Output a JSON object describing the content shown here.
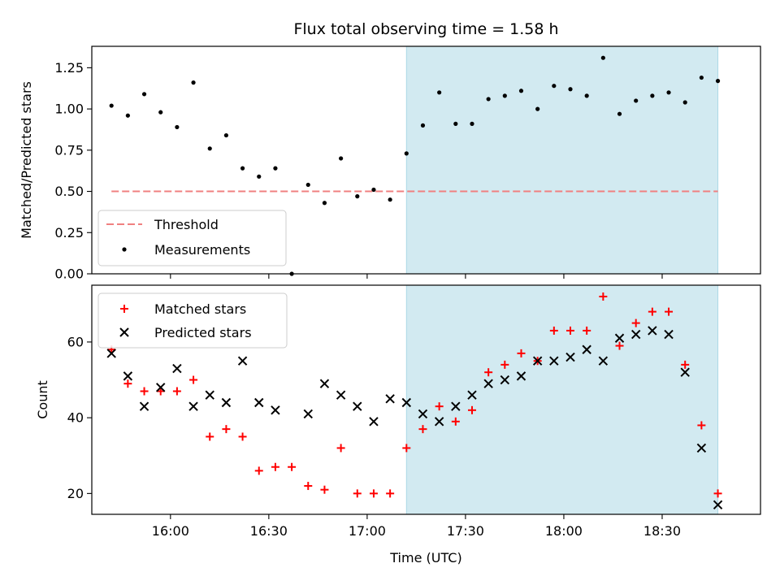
{
  "chart_data": [
    {
      "type": "scatter",
      "title": "Flux total observing time = 1.58 h",
      "xlabel": "",
      "ylabel": "Matched/Predicted stars",
      "ylim": [
        0,
        1.38
      ],
      "yticks": [
        0.0,
        0.25,
        0.5,
        0.75,
        1.0,
        1.25
      ],
      "ytick_labels": [
        "0.00",
        "0.25",
        "0.50",
        "0.75",
        "1.00",
        "1.25"
      ],
      "xlim": [
        "15:36",
        "19:00"
      ],
      "xticks": [
        "16:00",
        "16:30",
        "17:00",
        "17:30",
        "18:00",
        "18:30"
      ],
      "shaded_region": {
        "from": "17:12",
        "to": "18:47",
        "color": "#add8e6"
      },
      "legend_position": "lower-left",
      "threshold": {
        "name": "Threshold",
        "value": 0.5,
        "from": "15:42",
        "to": "18:47",
        "color": "#f08080"
      },
      "series": [
        {
          "name": "Measurements",
          "marker": "dot",
          "color": "#000000",
          "points": [
            [
              "15:42",
              1.02
            ],
            [
              "15:47",
              0.96
            ],
            [
              "15:52",
              1.09
            ],
            [
              "15:57",
              0.98
            ],
            [
              "16:02",
              0.89
            ],
            [
              "16:07",
              1.16
            ],
            [
              "16:12",
              0.76
            ],
            [
              "16:17",
              0.84
            ],
            [
              "16:22",
              0.64
            ],
            [
              "16:27",
              0.59
            ],
            [
              "16:32",
              0.64
            ],
            [
              "16:37",
              0.0
            ],
            [
              "16:42",
              0.54
            ],
            [
              "16:47",
              0.43
            ],
            [
              "16:52",
              0.7
            ],
            [
              "16:57",
              0.47
            ],
            [
              "17:02",
              0.51
            ],
            [
              "17:07",
              0.45
            ],
            [
              "17:12",
              0.73
            ],
            [
              "17:17",
              0.9
            ],
            [
              "17:22",
              1.1
            ],
            [
              "17:27",
              0.91
            ],
            [
              "17:32",
              0.91
            ],
            [
              "17:37",
              1.06
            ],
            [
              "17:42",
              1.08
            ],
            [
              "17:47",
              1.11
            ],
            [
              "17:52",
              1.0
            ],
            [
              "17:57",
              1.14
            ],
            [
              "18:02",
              1.12
            ],
            [
              "18:07",
              1.08
            ],
            [
              "18:12",
              1.31
            ],
            [
              "18:17",
              0.97
            ],
            [
              "18:22",
              1.05
            ],
            [
              "18:27",
              1.08
            ],
            [
              "18:32",
              1.1
            ],
            [
              "18:37",
              1.04
            ],
            [
              "18:42",
              1.19
            ],
            [
              "18:47",
              1.17
            ]
          ]
        }
      ]
    },
    {
      "type": "scatter",
      "title": "",
      "xlabel": "Time (UTC)",
      "ylabel": "Count",
      "ylim": [
        14.5,
        75
      ],
      "yticks": [
        20,
        40,
        60
      ],
      "ytick_labels": [
        "20",
        "40",
        "60"
      ],
      "xlim": [
        "15:36",
        "19:00"
      ],
      "xticks": [
        "16:00",
        "16:30",
        "17:00",
        "17:30",
        "18:00",
        "18:30"
      ],
      "xtick_labels": [
        "16:00",
        "16:30",
        "17:00",
        "17:30",
        "18:00",
        "18:30"
      ],
      "shaded_region": {
        "from": "17:12",
        "to": "18:47",
        "color": "#add8e6"
      },
      "legend_position": "upper-left",
      "series": [
        {
          "name": "Matched stars",
          "marker": "plus",
          "color": "#ff0000",
          "points": [
            [
              "15:42",
              58
            ],
            [
              "15:47",
              49
            ],
            [
              "15:52",
              47
            ],
            [
              "15:57",
              47
            ],
            [
              "16:02",
              47
            ],
            [
              "16:07",
              50
            ],
            [
              "16:12",
              35
            ],
            [
              "16:17",
              37
            ],
            [
              "16:22",
              35
            ],
            [
              "16:27",
              26
            ],
            [
              "16:32",
              27
            ],
            [
              "16:37",
              27
            ],
            [
              "16:42",
              22
            ],
            [
              "16:47",
              21
            ],
            [
              "16:52",
              32
            ],
            [
              "16:57",
              20
            ],
            [
              "17:02",
              20
            ],
            [
              "17:07",
              20
            ],
            [
              "17:12",
              32
            ],
            [
              "17:17",
              37
            ],
            [
              "17:22",
              43
            ],
            [
              "17:27",
              39
            ],
            [
              "17:32",
              42
            ],
            [
              "17:37",
              52
            ],
            [
              "17:42",
              54
            ],
            [
              "17:47",
              57
            ],
            [
              "17:52",
              55
            ],
            [
              "17:57",
              63
            ],
            [
              "18:02",
              63
            ],
            [
              "18:07",
              63
            ],
            [
              "18:12",
              72
            ],
            [
              "18:17",
              59
            ],
            [
              "18:22",
              65
            ],
            [
              "18:27",
              68
            ],
            [
              "18:32",
              68
            ],
            [
              "18:37",
              54
            ],
            [
              "18:42",
              38
            ],
            [
              "18:47",
              20
            ]
          ]
        },
        {
          "name": "Predicted stars",
          "marker": "x",
          "color": "#000000",
          "points": [
            [
              "15:42",
              57
            ],
            [
              "15:47",
              51
            ],
            [
              "15:52",
              43
            ],
            [
              "15:57",
              48
            ],
            [
              "16:02",
              53
            ],
            [
              "16:07",
              43
            ],
            [
              "16:12",
              46
            ],
            [
              "16:17",
              44
            ],
            [
              "16:22",
              55
            ],
            [
              "16:27",
              44
            ],
            [
              "16:32",
              42
            ],
            [
              "16:42",
              41
            ],
            [
              "16:47",
              49
            ],
            [
              "16:52",
              46
            ],
            [
              "16:57",
              43
            ],
            [
              "17:02",
              39
            ],
            [
              "17:07",
              45
            ],
            [
              "17:12",
              44
            ],
            [
              "17:17",
              41
            ],
            [
              "17:22",
              39
            ],
            [
              "17:27",
              43
            ],
            [
              "17:32",
              46
            ],
            [
              "17:37",
              49
            ],
            [
              "17:42",
              50
            ],
            [
              "17:47",
              51
            ],
            [
              "17:52",
              55
            ],
            [
              "17:57",
              55
            ],
            [
              "18:02",
              56
            ],
            [
              "18:07",
              58
            ],
            [
              "18:12",
              55
            ],
            [
              "18:17",
              61
            ],
            [
              "18:22",
              62
            ],
            [
              "18:27",
              63
            ],
            [
              "18:32",
              62
            ],
            [
              "18:37",
              52
            ],
            [
              "18:42",
              32
            ],
            [
              "18:47",
              17
            ]
          ]
        }
      ]
    }
  ]
}
